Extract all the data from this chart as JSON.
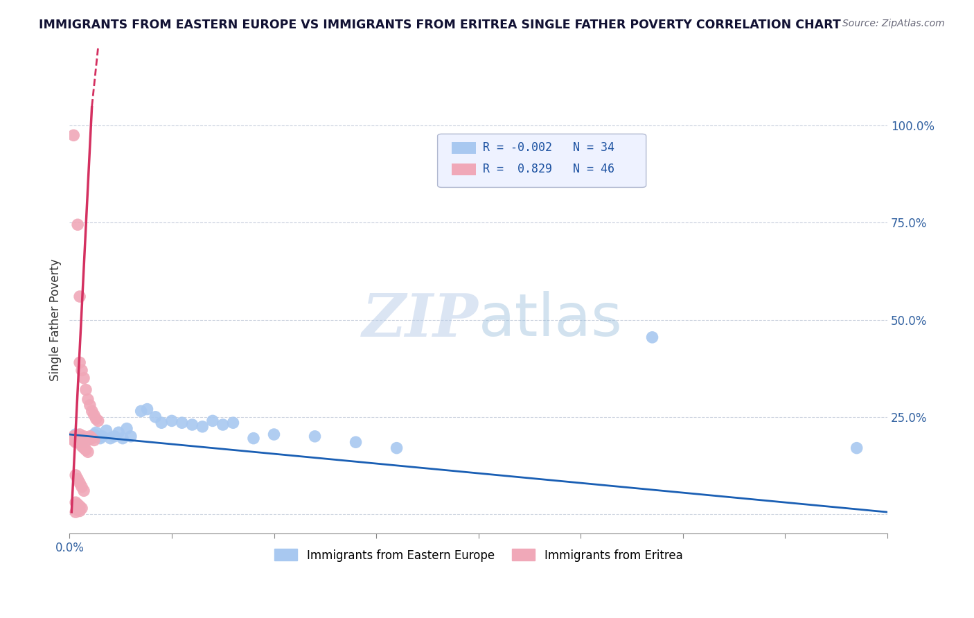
{
  "title": "IMMIGRANTS FROM EASTERN EUROPE VS IMMIGRANTS FROM ERITREA SINGLE FATHER POVERTY CORRELATION CHART",
  "source": "Source: ZipAtlas.com",
  "xlabel_blue": "Immigrants from Eastern Europe",
  "xlabel_pink": "Immigrants from Eritrea",
  "ylabel": "Single Father Poverty",
  "xmin": 0.0,
  "xmax": 0.4,
  "ymin": -0.05,
  "ymax": 1.05,
  "xtick_positions": [
    0.0,
    0.05,
    0.1,
    0.15,
    0.2,
    0.25,
    0.3,
    0.35,
    0.4
  ],
  "xtick_labels_shown": {
    "0.0": "0.0%"
  },
  "yticks": [
    0.0,
    0.25,
    0.5,
    0.75,
    1.0
  ],
  "ytick_labels": [
    "",
    "25.0%",
    "50.0%",
    "75.0%",
    "100.0%"
  ],
  "R_blue": -0.002,
  "N_blue": 34,
  "R_pink": 0.829,
  "N_pink": 46,
  "blue_color": "#a8c8f0",
  "pink_color": "#f0a8b8",
  "blue_line_color": "#1a5fb4",
  "pink_line_color": "#d43060",
  "watermark_zip": "ZIP",
  "watermark_atlas": "atlas",
  "legend_box_bg": "#eef2ff",
  "legend_box_border": "#b0b8d0",
  "blue_scatter": [
    [
      0.003,
      0.205
    ],
    [
      0.005,
      0.195
    ],
    [
      0.007,
      0.185
    ],
    [
      0.008,
      0.19
    ],
    [
      0.01,
      0.195
    ],
    [
      0.012,
      0.205
    ],
    [
      0.013,
      0.21
    ],
    [
      0.015,
      0.195
    ],
    [
      0.016,
      0.2
    ],
    [
      0.018,
      0.215
    ],
    [
      0.02,
      0.195
    ],
    [
      0.022,
      0.2
    ],
    [
      0.024,
      0.21
    ],
    [
      0.026,
      0.195
    ],
    [
      0.028,
      0.22
    ],
    [
      0.03,
      0.2
    ],
    [
      0.035,
      0.265
    ],
    [
      0.038,
      0.27
    ],
    [
      0.042,
      0.25
    ],
    [
      0.045,
      0.235
    ],
    [
      0.05,
      0.24
    ],
    [
      0.055,
      0.235
    ],
    [
      0.06,
      0.23
    ],
    [
      0.065,
      0.225
    ],
    [
      0.07,
      0.24
    ],
    [
      0.075,
      0.23
    ],
    [
      0.08,
      0.235
    ],
    [
      0.09,
      0.195
    ],
    [
      0.1,
      0.205
    ],
    [
      0.12,
      0.2
    ],
    [
      0.14,
      0.185
    ],
    [
      0.16,
      0.17
    ],
    [
      0.285,
      0.455
    ],
    [
      0.385,
      0.17
    ]
  ],
  "pink_scatter": [
    [
      0.002,
      0.975
    ],
    [
      0.004,
      0.745
    ],
    [
      0.005,
      0.56
    ],
    [
      0.005,
      0.39
    ],
    [
      0.006,
      0.37
    ],
    [
      0.007,
      0.35
    ],
    [
      0.008,
      0.32
    ],
    [
      0.009,
      0.295
    ],
    [
      0.01,
      0.28
    ],
    [
      0.011,
      0.265
    ],
    [
      0.012,
      0.255
    ],
    [
      0.013,
      0.245
    ],
    [
      0.014,
      0.24
    ],
    [
      0.003,
      0.2
    ],
    [
      0.004,
      0.185
    ],
    [
      0.005,
      0.195
    ],
    [
      0.006,
      0.175
    ],
    [
      0.007,
      0.17
    ],
    [
      0.008,
      0.165
    ],
    [
      0.009,
      0.16
    ],
    [
      0.01,
      0.2
    ],
    [
      0.011,
      0.195
    ],
    [
      0.012,
      0.19
    ],
    [
      0.003,
      0.195
    ],
    [
      0.004,
      0.2
    ],
    [
      0.005,
      0.205
    ],
    [
      0.006,
      0.195
    ],
    [
      0.007,
      0.2
    ],
    [
      0.008,
      0.195
    ],
    [
      0.009,
      0.19
    ],
    [
      0.003,
      0.1
    ],
    [
      0.004,
      0.09
    ],
    [
      0.005,
      0.08
    ],
    [
      0.006,
      0.07
    ],
    [
      0.007,
      0.06
    ],
    [
      0.003,
      0.03
    ],
    [
      0.004,
      0.025
    ],
    [
      0.005,
      0.02
    ],
    [
      0.006,
      0.015
    ],
    [
      0.004,
      0.01
    ],
    [
      0.005,
      0.008
    ],
    [
      0.003,
      0.005
    ],
    [
      0.002,
      0.2
    ],
    [
      0.003,
      0.195
    ],
    [
      0.002,
      0.19
    ],
    [
      0.003,
      0.185
    ]
  ],
  "pink_line_slope": 105.0,
  "pink_line_intercept": -0.1,
  "blue_line_y_intercept": 0.205,
  "blue_line_slope": -0.5
}
